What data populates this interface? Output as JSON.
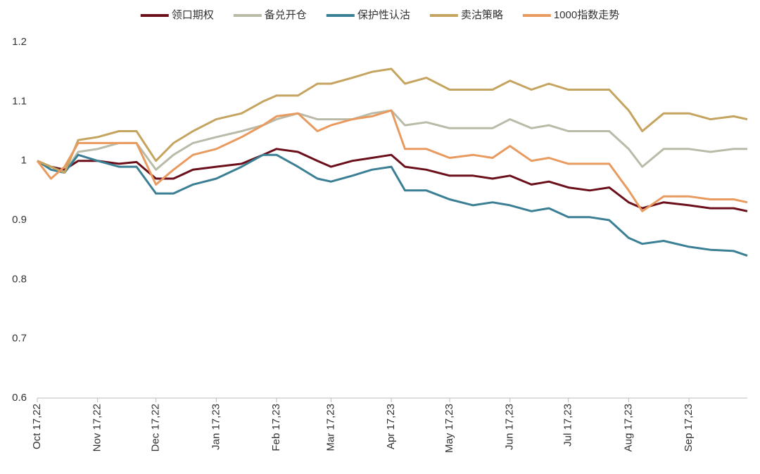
{
  "chart_data": {
    "type": "line",
    "x": [
      "2022-10-17",
      "2022-10-24",
      "2022-10-31",
      "2022-11-07",
      "2022-11-17",
      "2022-11-28",
      "2022-12-07",
      "2022-12-17",
      "2022-12-26",
      "2023-01-05",
      "2023-01-17",
      "2023-01-30",
      "2023-02-10",
      "2023-02-17",
      "2023-02-28",
      "2023-03-10",
      "2023-03-17",
      "2023-03-28",
      "2023-04-07",
      "2023-04-17",
      "2023-04-24",
      "2023-05-05",
      "2023-05-17",
      "2023-05-29",
      "2023-06-08",
      "2023-06-17",
      "2023-06-28",
      "2023-07-07",
      "2023-07-17",
      "2023-07-28",
      "2023-08-07",
      "2023-08-17",
      "2023-08-24",
      "2023-09-04",
      "2023-09-17",
      "2023-09-28",
      "2023-10-10",
      "2023-10-17"
    ],
    "series": [
      {
        "name": "领口期权",
        "color": "#6b0f1a",
        "values": [
          1.0,
          0.99,
          0.985,
          1.0,
          1.0,
          0.995,
          0.998,
          0.97,
          0.97,
          0.985,
          0.99,
          0.995,
          1.01,
          1.02,
          1.015,
          1.0,
          0.99,
          1.0,
          1.005,
          1.01,
          0.99,
          0.985,
          0.975,
          0.975,
          0.97,
          0.975,
          0.96,
          0.965,
          0.955,
          0.95,
          0.955,
          0.93,
          0.92,
          0.93,
          0.925,
          0.92,
          0.92,
          0.915
        ]
      },
      {
        "name": "备兑开仓",
        "color": "#b9bba8",
        "values": [
          1.0,
          0.99,
          0.98,
          1.015,
          1.02,
          1.03,
          1.03,
          0.985,
          1.01,
          1.03,
          1.04,
          1.05,
          1.06,
          1.07,
          1.08,
          1.07,
          1.07,
          1.07,
          1.08,
          1.085,
          1.06,
          1.065,
          1.055,
          1.055,
          1.055,
          1.07,
          1.055,
          1.06,
          1.05,
          1.05,
          1.05,
          1.02,
          0.99,
          1.02,
          1.02,
          1.015,
          1.02,
          1.02
        ]
      },
      {
        "name": "保护性认沽",
        "color": "#3a7f94",
        "values": [
          1.0,
          0.985,
          0.98,
          1.01,
          1.0,
          0.99,
          0.99,
          0.945,
          0.945,
          0.96,
          0.97,
          0.99,
          1.01,
          1.01,
          0.99,
          0.97,
          0.965,
          0.975,
          0.985,
          0.99,
          0.95,
          0.95,
          0.935,
          0.925,
          0.93,
          0.925,
          0.915,
          0.92,
          0.905,
          0.905,
          0.9,
          0.87,
          0.86,
          0.865,
          0.855,
          0.85,
          0.848,
          0.84
        ]
      },
      {
        "name": "卖沽策略",
        "color": "#c4a45f",
        "values": [
          1.0,
          0.99,
          0.98,
          1.035,
          1.04,
          1.05,
          1.05,
          1.0,
          1.03,
          1.05,
          1.07,
          1.08,
          1.1,
          1.11,
          1.11,
          1.13,
          1.13,
          1.14,
          1.15,
          1.155,
          1.13,
          1.14,
          1.12,
          1.12,
          1.12,
          1.135,
          1.12,
          1.13,
          1.12,
          1.12,
          1.12,
          1.085,
          1.05,
          1.08,
          1.08,
          1.07,
          1.075,
          1.07
        ]
      },
      {
        "name": "1000指数走势",
        "color": "#e89a5f",
        "values": [
          1.0,
          0.97,
          0.99,
          1.03,
          1.03,
          1.03,
          1.03,
          0.96,
          0.985,
          1.01,
          1.02,
          1.04,
          1.06,
          1.075,
          1.08,
          1.05,
          1.06,
          1.07,
          1.075,
          1.085,
          1.02,
          1.02,
          1.005,
          1.01,
          1.005,
          1.025,
          1.0,
          1.005,
          0.995,
          0.995,
          0.995,
          0.95,
          0.915,
          0.94,
          0.94,
          0.935,
          0.935,
          0.93
        ]
      }
    ],
    "xlim": [
      "2022-10-17",
      "2023-10-17"
    ],
    "xticks": [
      {
        "value": "2022-10-17",
        "label": "Oct 17,22"
      },
      {
        "value": "2022-11-17",
        "label": "Nov 17,22"
      },
      {
        "value": "2022-12-17",
        "label": "Dec 17,22"
      },
      {
        "value": "2023-01-17",
        "label": "Jan 17,23"
      },
      {
        "value": "2023-02-17",
        "label": "Feb 17,23"
      },
      {
        "value": "2023-03-17",
        "label": "Mar 17,23"
      },
      {
        "value": "2023-04-17",
        "label": "Apr 17,23"
      },
      {
        "value": "2023-05-17",
        "label": "May 17,23"
      },
      {
        "value": "2023-06-17",
        "label": "Jun 17,23"
      },
      {
        "value": "2023-07-17",
        "label": "Jul 17,23"
      },
      {
        "value": "2023-08-17",
        "label": "Aug 17,23"
      },
      {
        "value": "2023-09-17",
        "label": "Sep 17,23"
      }
    ],
    "ylim": [
      0.6,
      1.2
    ],
    "yticks": [
      0.6,
      0.7,
      0.8,
      0.9,
      1,
      1.1,
      1.2
    ],
    "grid": false,
    "legend": "top"
  }
}
